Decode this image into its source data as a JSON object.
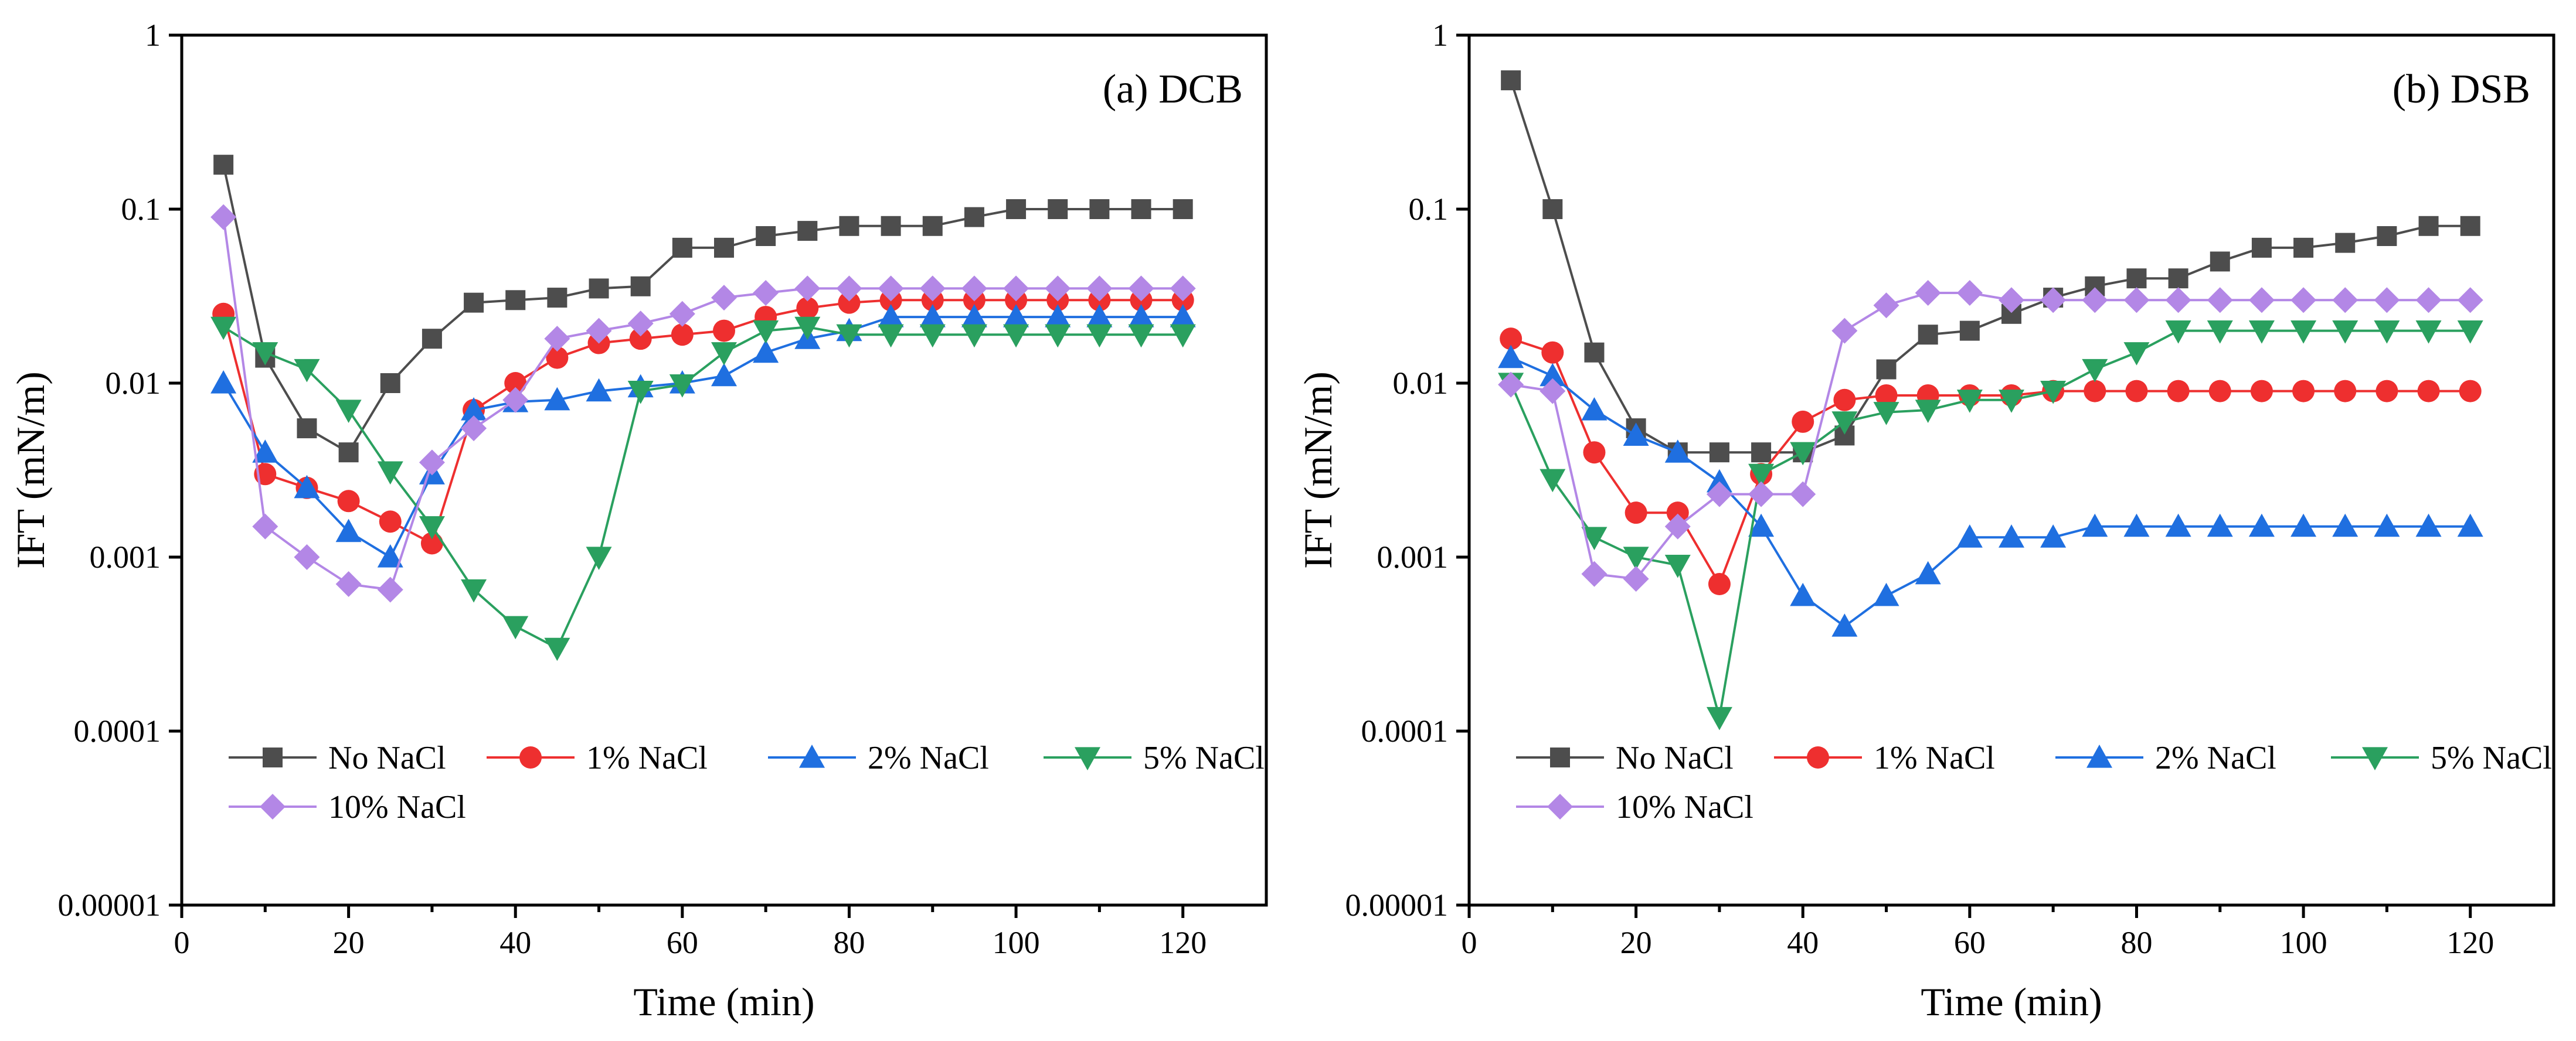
{
  "colors": {
    "No NaCl": "#4d4d4d",
    "1% NaCl": "#ee2f2f",
    "2% NaCl": "#1f6fe0",
    "5% NaCl": "#2aa05f",
    "10% NaCl": "#b387e6"
  },
  "markers": {
    "No NaCl": "square",
    "1% NaCl": "circle",
    "2% NaCl": "triangle-up",
    "5% NaCl": "triangle-down",
    "10% NaCl": "diamond"
  },
  "chart_data": [
    {
      "type": "line",
      "title": "(a) DCB",
      "xlabel": "Time (min)",
      "ylabel": "IFT (mN/m)",
      "yscale": "log",
      "xlim": [
        0,
        130
      ],
      "ylim": [
        1e-05,
        1
      ],
      "xticks": [
        0,
        20,
        40,
        60,
        80,
        100,
        120
      ],
      "yticks": [
        1e-05,
        0.0001,
        0.001,
        0.01,
        0.1,
        1
      ],
      "ytick_labels": [
        "0.00001",
        "0.0001",
        "0.001",
        "0.01",
        "0.1",
        "1"
      ],
      "legend_position": "bottom-left",
      "x": [
        5,
        10,
        15,
        20,
        25,
        30,
        35,
        40,
        45,
        50,
        55,
        60,
        65,
        70,
        75,
        80,
        85,
        90,
        95,
        100,
        105,
        110,
        115,
        120
      ],
      "series": [
        {
          "name": "No NaCl",
          "values": [
            0.18,
            0.014,
            0.0055,
            0.004,
            0.01,
            0.018,
            0.029,
            0.03,
            0.031,
            0.035,
            0.036,
            0.06,
            0.06,
            0.07,
            0.075,
            0.08,
            0.08,
            0.08,
            0.09,
            0.1,
            0.1,
            0.1,
            0.1,
            0.1
          ]
        },
        {
          "name": "1% NaCl",
          "values": [
            0.025,
            0.003,
            0.0025,
            0.0021,
            0.0016,
            0.0012,
            0.007,
            0.01,
            0.014,
            0.017,
            0.018,
            0.019,
            0.02,
            0.024,
            0.027,
            0.029,
            0.03,
            0.03,
            0.03,
            0.03,
            0.03,
            0.03,
            0.03,
            0.03
          ]
        },
        {
          "name": "2% NaCl",
          "values": [
            0.01,
            0.004,
            0.0025,
            0.0014,
            0.001,
            0.003,
            0.007,
            0.0078,
            0.008,
            0.009,
            0.0095,
            0.01,
            0.011,
            0.015,
            0.018,
            0.02,
            0.024,
            0.024,
            0.024,
            0.024,
            0.024,
            0.024,
            0.024,
            0.024
          ]
        },
        {
          "name": "5% NaCl",
          "values": [
            0.021,
            0.015,
            0.012,
            0.007,
            0.0031,
            0.0015,
            0.00065,
            0.0004,
            0.0003,
            0.001,
            0.009,
            0.0098,
            0.015,
            0.02,
            0.021,
            0.019,
            0.019,
            0.019,
            0.019,
            0.019,
            0.019,
            0.019,
            0.019,
            0.019
          ]
        },
        {
          "name": "10% NaCl",
          "values": [
            0.09,
            0.0015,
            0.001,
            0.0007,
            0.00065,
            0.0035,
            0.0055,
            0.008,
            0.018,
            0.02,
            0.022,
            0.025,
            0.031,
            0.033,
            0.035,
            0.035,
            0.035,
            0.035,
            0.035,
            0.035,
            0.035,
            0.035,
            0.035,
            0.035
          ]
        }
      ]
    },
    {
      "type": "line",
      "title": "(b) DSB",
      "xlabel": "Time (min)",
      "ylabel": "IFT (mN/m)",
      "yscale": "log",
      "xlim": [
        0,
        130
      ],
      "ylim": [
        1e-05,
        1
      ],
      "xticks": [
        0,
        20,
        40,
        60,
        80,
        100,
        120
      ],
      "yticks": [
        1e-05,
        0.0001,
        0.001,
        0.01,
        0.1,
        1
      ],
      "ytick_labels": [
        "0.00001",
        "0.0001",
        "0.001",
        "0.01",
        "0.1",
        "1"
      ],
      "legend_position": "bottom-left",
      "x": [
        5,
        10,
        15,
        20,
        25,
        30,
        35,
        40,
        45,
        50,
        55,
        60,
        65,
        70,
        75,
        80,
        85,
        90,
        95,
        100,
        105,
        110,
        115,
        120
      ],
      "series": [
        {
          "name": "No NaCl",
          "values": [
            0.55,
            0.1,
            0.015,
            0.0055,
            0.004,
            0.004,
            0.004,
            0.004,
            0.005,
            0.012,
            0.019,
            0.02,
            0.025,
            0.031,
            0.036,
            0.04,
            0.04,
            0.05,
            0.06,
            0.06,
            0.064,
            0.07,
            0.08,
            0.08
          ]
        },
        {
          "name": "1% NaCl",
          "values": [
            0.018,
            0.015,
            0.004,
            0.0018,
            0.0018,
            0.0007,
            0.003,
            0.006,
            0.008,
            0.0085,
            0.0085,
            0.0085,
            0.0085,
            0.009,
            0.009,
            0.009,
            0.009,
            0.009,
            0.009,
            0.009,
            0.009,
            0.009,
            0.009,
            0.009
          ]
        },
        {
          "name": "2% NaCl",
          "values": [
            0.014,
            0.011,
            0.007,
            0.005,
            0.004,
            0.0027,
            0.0015,
            0.0006,
            0.0004,
            0.0006,
            0.0008,
            0.0013,
            0.0013,
            0.0013,
            0.0015,
            0.0015,
            0.0015,
            0.0015,
            0.0015,
            0.0015,
            0.0015,
            0.0015,
            0.0015,
            0.0015
          ]
        },
        {
          "name": "5% NaCl",
          "values": [
            0.01,
            0.0028,
            0.0013,
            0.001,
            0.0009,
            0.00012,
            0.003,
            0.004,
            0.006,
            0.0068,
            0.007,
            0.008,
            0.008,
            0.009,
            0.012,
            0.015,
            0.02,
            0.02,
            0.02,
            0.02,
            0.02,
            0.02,
            0.02,
            0.02
          ]
        },
        {
          "name": "10% NaCl",
          "values": [
            0.0098,
            0.009,
            0.0008,
            0.00075,
            0.0015,
            0.0023,
            0.0023,
            0.0023,
            0.02,
            0.028,
            0.033,
            0.033,
            0.03,
            0.03,
            0.03,
            0.03,
            0.03,
            0.03,
            0.03,
            0.03,
            0.03,
            0.03,
            0.03,
            0.03
          ]
        }
      ]
    }
  ]
}
